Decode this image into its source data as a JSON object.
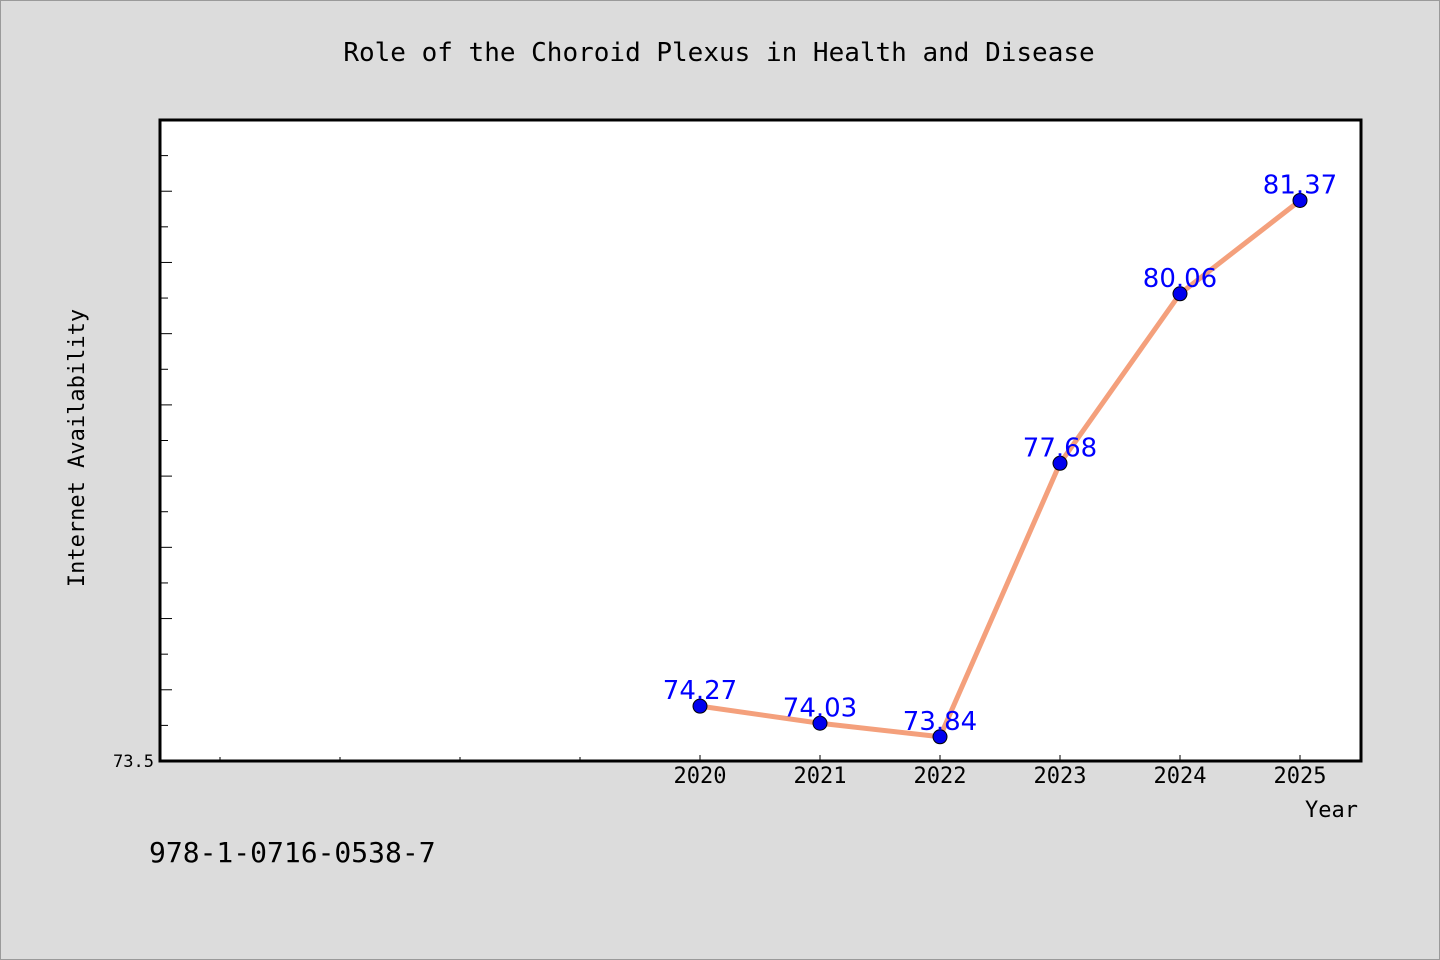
{
  "chart_data": {
    "type": "line",
    "title": "Role of the Choroid Plexus in Health and Disease",
    "xlabel": "Year",
    "ylabel": "Internet Availability",
    "x": [
      "2020",
      "2021",
      "2022",
      "2023",
      "2024",
      "2025"
    ],
    "values": [
      74.27,
      74.03,
      73.84,
      77.68,
      80.06,
      81.37
    ],
    "ylim": [
      73.5,
      82.5
    ],
    "y_tick_labels": [
      "73.5"
    ],
    "grid": false,
    "legend": "none",
    "colors": {
      "line": "#f4a07c",
      "marker": "#0000ee",
      "data_label": "#0000ff",
      "background": "#dcdcdc",
      "plot_background": "#ffffff"
    }
  },
  "footer": {
    "isbn": "978-1-0716-0538-7"
  }
}
